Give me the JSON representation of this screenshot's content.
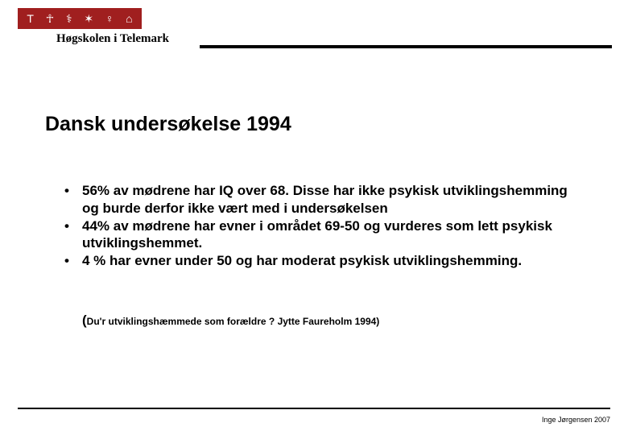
{
  "header": {
    "logo_glyphs": [
      "T",
      "☥",
      "⚕",
      "✶",
      "♀",
      "⌂"
    ],
    "logo_bg": "#a01f1f",
    "logo_fg": "#ffffff",
    "institution": "Høgskolen i Telemark"
  },
  "slide": {
    "title": "Dansk undersøkelse 1994",
    "bullets": [
      "56% av mødrene har IQ over 68. Disse har ikke psykisk utviklingshemming og burde derfor ikke vært med i undersøkelsen",
      "44% av mødrene har evner i området 69-50 og vurderes som lett psykisk utviklingshemmet.",
      "4 % har evner under 50 og har moderat psykisk utviklingshemming."
    ],
    "citation_prefix": "(",
    "citation_body": "Du'r utviklingshæmmede som forældre ? Jytte Faureholm 1994)"
  },
  "footer": {
    "text": "Inge Jørgensen 2007"
  },
  "style": {
    "page_bg": "#ffffff",
    "text_color": "#000000",
    "rule_color": "#000000",
    "title_fontsize": 25,
    "body_fontsize": 17,
    "citation_small_fontsize": 12,
    "footer_fontsize": 9
  }
}
